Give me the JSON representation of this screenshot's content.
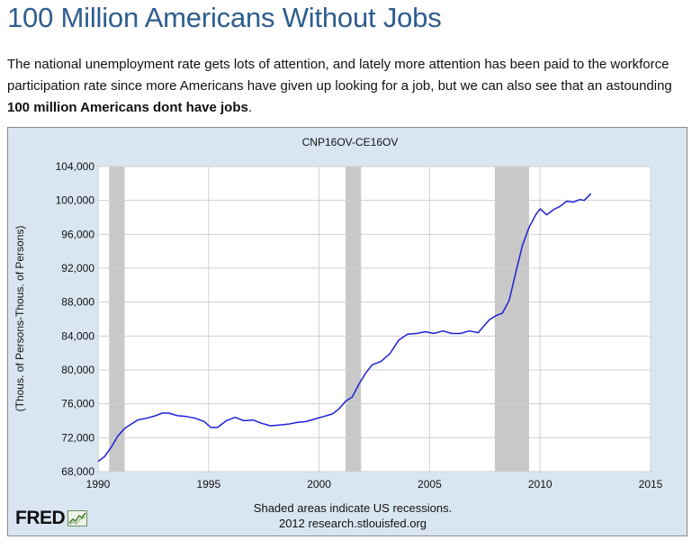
{
  "article": {
    "headline": "100 Million Americans Without Jobs",
    "intro_text": "The national unemployment rate gets lots of attention, and lately more attention has been paid to the workforce participation rate since more Americans have given up looking for a job, but we can also see that an astounding ",
    "intro_bold": "100 million Americans dont have jobs",
    "intro_end": "."
  },
  "branding": {
    "logo_text": "FRED"
  },
  "colors": {
    "headline": "#2e5d8f",
    "panel_bg": "#d9e6f2",
    "plot_bg": "#ffffff",
    "grid": "#d0d0d0",
    "recession": "#c8c8c8",
    "series": "#1f1fd6"
  },
  "chart_data": {
    "type": "line",
    "title": "CNP16OV-CE16OV",
    "ylabel": "(Thous. of Persons-Thous. of Persons)",
    "xlabel": "",
    "xlim": [
      1990,
      2015
    ],
    "ylim": [
      68000,
      104000
    ],
    "grid": true,
    "x_ticks": [
      1990,
      1995,
      2000,
      2005,
      2010,
      2015
    ],
    "x_tick_labels": [
      "1990",
      "1995",
      "2000",
      "2005",
      "2010",
      "2015"
    ],
    "y_ticks": [
      68000,
      72000,
      76000,
      80000,
      84000,
      88000,
      92000,
      96000,
      100000,
      104000
    ],
    "y_tick_labels": [
      "68,000",
      "72,000",
      "76,000",
      "80,000",
      "84,000",
      "88,000",
      "92,000",
      "96,000",
      "100,000",
      "104,000"
    ],
    "recessions": [
      {
        "start": 1990.5,
        "end": 1991.2
      },
      {
        "start": 2001.2,
        "end": 2001.9
      },
      {
        "start": 2007.95,
        "end": 2009.5
      }
    ],
    "notes": [
      "Shaded areas indicate US recessions.",
      "2012 research.stlouisfed.org"
    ],
    "series": [
      {
        "x": [
          1990.0,
          1990.3,
          1990.6,
          1990.9,
          1991.2,
          1991.5,
          1991.8,
          1992.2,
          1992.6,
          1992.9,
          1993.2,
          1993.6,
          1994.0,
          1994.4,
          1994.8,
          1995.1,
          1995.4,
          1995.8,
          1996.2,
          1996.6,
          1997.0,
          1997.4,
          1997.8,
          1998.2,
          1998.6,
          1999.0,
          1999.4,
          1999.8,
          2000.2,
          2000.6,
          2000.9,
          2001.2,
          2001.5,
          2001.8,
          2002.1,
          2002.4,
          2002.8,
          2003.2,
          2003.6,
          2004.0,
          2004.4,
          2004.8,
          2005.2,
          2005.6,
          2006.0,
          2006.4,
          2006.8,
          2007.2,
          2007.4,
          2007.7,
          2008.0,
          2008.3,
          2008.6,
          2008.9,
          2009.2,
          2009.5,
          2009.8,
          2010.0,
          2010.3,
          2010.6,
          2010.9,
          2011.2,
          2011.5,
          2011.8,
          2012.0,
          2012.3
        ],
        "values": [
          69200,
          69800,
          70900,
          72200,
          73100,
          73600,
          74100,
          74300,
          74600,
          74900,
          74900,
          74600,
          74500,
          74300,
          73900,
          73200,
          73200,
          74000,
          74400,
          74000,
          74100,
          73700,
          73400,
          73500,
          73600,
          73800,
          73900,
          74200,
          74500,
          74800,
          75400,
          76300,
          76800,
          78300,
          79600,
          80600,
          81000,
          81900,
          83500,
          84200,
          84300,
          84500,
          84300,
          84600,
          84300,
          84300,
          84600,
          84400,
          85000,
          85900,
          86400,
          86700,
          88200,
          91500,
          94700,
          96800,
          98300,
          99000,
          98300,
          98900,
          99300,
          99900,
          99800,
          100100,
          100000,
          100800
        ]
      }
    ]
  }
}
